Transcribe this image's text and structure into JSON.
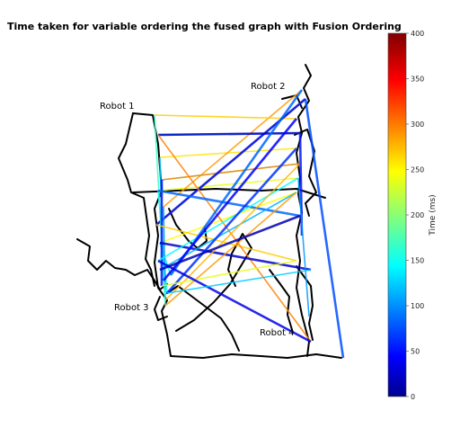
{
  "chart_data": {
    "type": "heatmap",
    "title": "Time taken for variable ordering the fused graph with Fusion Ordering",
    "colorbar": {
      "label": "Time (ms)",
      "colormap": "jet",
      "range": [
        0,
        400
      ],
      "ticks": [
        "0",
        "50",
        "100",
        "150",
        "200",
        "250",
        "300",
        "350",
        "400"
      ]
    },
    "annotations": [
      "Robot 1",
      "Robot 2",
      "Robot 3",
      "Robot 4"
    ],
    "edges": [
      {
        "from": "Robot 1",
        "to": "Robot 2",
        "time_ms": 180
      },
      {
        "from": "Robot 1",
        "to": "Robot 2",
        "time_ms": 200
      },
      {
        "from": "Robot 1",
        "to": "Robot 2",
        "time_ms": 160
      },
      {
        "from": "Robot 1",
        "to": "Robot 2",
        "time_ms": 240
      },
      {
        "from": "Robot 1",
        "to": "Robot 2",
        "time_ms": 250
      },
      {
        "from": "Robot 1",
        "to": "Robot 2",
        "time_ms": 260
      },
      {
        "from": "Robot 1",
        "to": "Robot 2",
        "time_ms": 290
      },
      {
        "from": "Robot 1",
        "to": "Robot 2",
        "time_ms": 270
      },
      {
        "from": "Robot 1",
        "to": "Robot 2",
        "time_ms": 300
      },
      {
        "from": "Robot 1",
        "to": "Robot 2",
        "time_ms": 40
      },
      {
        "from": "Robot 1",
        "to": "Robot 2",
        "time_ms": 25
      },
      {
        "from": "Robot 1",
        "to": "Robot 3",
        "time_ms": 150
      },
      {
        "from": "Robot 1",
        "to": "Robot 3",
        "time_ms": 140
      },
      {
        "from": "Robot 1",
        "to": "Robot 3",
        "time_ms": 130
      },
      {
        "from": "Robot 1",
        "to": "Robot 3",
        "time_ms": 110
      },
      {
        "from": "Robot 1",
        "to": "Robot 3",
        "time_ms": 170
      },
      {
        "from": "Robot 1",
        "to": "Robot 3",
        "time_ms": 60
      },
      {
        "from": "Robot 1",
        "to": "Robot 4",
        "time_ms": 270
      },
      {
        "from": "Robot 1",
        "to": "Robot 4",
        "time_ms": 300
      },
      {
        "from": "Robot 1",
        "to": "Robot 4",
        "time_ms": 90
      },
      {
        "from": "Robot 1",
        "to": "Robot 4",
        "time_ms": 30
      },
      {
        "from": "Robot 2",
        "to": "Robot 3",
        "time_ms": 150
      },
      {
        "from": "Robot 2",
        "to": "Robot 3",
        "time_ms": 120
      },
      {
        "from": "Robot 2",
        "to": "Robot 3",
        "time_ms": 70
      },
      {
        "from": "Robot 2",
        "to": "Robot 3",
        "time_ms": 90
      },
      {
        "from": "Robot 2",
        "to": "Robot 3",
        "time_ms": 50
      },
      {
        "from": "Robot 2",
        "to": "Robot 3",
        "time_ms": 280
      },
      {
        "from": "Robot 2",
        "to": "Robot 4",
        "time_ms": 80
      },
      {
        "from": "Robot 2",
        "to": "Robot 4",
        "time_ms": 60
      },
      {
        "from": "Robot 2",
        "to": "Robot 4",
        "time_ms": 110
      },
      {
        "from": "Robot 3",
        "to": "Robot 4",
        "time_ms": 290
      },
      {
        "from": "Robot 3",
        "to": "Robot 4",
        "time_ms": 240
      },
      {
        "from": "Robot 3",
        "to": "Robot 4",
        "time_ms": 40
      },
      {
        "from": "Robot 3",
        "to": "Robot 4",
        "time_ms": 20
      },
      {
        "from": "Robot 3",
        "to": "Robot 4",
        "time_ms": 130
      }
    ]
  }
}
